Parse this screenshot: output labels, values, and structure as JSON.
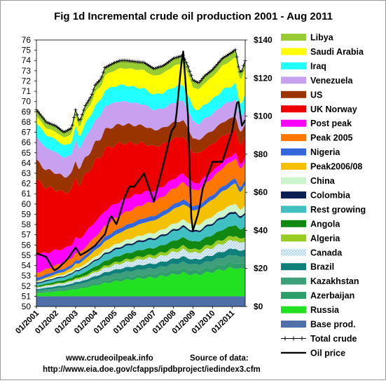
{
  "chart_data": {
    "type": "area",
    "title": "Fig 1d Incremental crude oil production 2001 - Aug 2011",
    "left_axis": {
      "ylim": [
        50,
        76
      ],
      "ticks": [
        50,
        51,
        52,
        53,
        54,
        55,
        56,
        57,
        58,
        59,
        60,
        61,
        62,
        63,
        64,
        65,
        66,
        67,
        68,
        69,
        70,
        71,
        72,
        73,
        74,
        75,
        76
      ]
    },
    "right_axis": {
      "ylim": [
        0,
        140
      ],
      "ticks": [
        0,
        20,
        40,
        60,
        80,
        100,
        120,
        140
      ],
      "tick_labels": [
        "$0",
        "$20",
        "$40",
        "$60",
        "$80",
        "$100",
        "$120",
        "$140"
      ]
    },
    "x_tick_labels": [
      "01/2001",
      "01/2002",
      "01/2003",
      "01/2004",
      "01/2005",
      "01/2006",
      "01/2007",
      "01/2008",
      "01/2009",
      "01/2010",
      "01/2011"
    ],
    "x_years": [
      2001,
      2002,
      2003,
      2004,
      2005,
      2006,
      2007,
      2008,
      2009,
      2010,
      2011
    ],
    "x_range": [
      2001.0,
      2011.67
    ],
    "grid": false,
    "legend_position": "right",
    "stack_top_knots": {
      "x": [
        2001.0,
        2001.5,
        2002.0,
        2002.4,
        2002.8,
        2003.0,
        2003.2,
        2003.5,
        2003.8,
        2004.0,
        2004.3,
        2004.5,
        2004.8,
        2005.0,
        2005.3,
        2005.6,
        2006.0,
        2006.5,
        2007.0,
        2007.5,
        2008.0,
        2008.5,
        2008.75,
        2009.0,
        2009.3,
        2009.6,
        2010.0,
        2010.5,
        2011.0,
        2011.2,
        2011.3,
        2011.45,
        2011.67
      ],
      "y": [
        69.2,
        68.0,
        67.6,
        67.0,
        67.4,
        69.2,
        68.0,
        69.6,
        70.5,
        71.6,
        72.2,
        73.3,
        73.6,
        73.8,
        74.0,
        74.0,
        73.9,
        73.8,
        73.2,
        73.5,
        74.2,
        74.5,
        73.4,
        72.1,
        71.8,
        72.5,
        73.1,
        74.2,
        74.8,
        75.1,
        73.6,
        72.7,
        74.0
      ]
    },
    "series": [
      {
        "name": "Base prod.",
        "color": "#4f6fa8",
        "start": 1.0,
        "end": 1.0
      },
      {
        "name": "Russia",
        "color": "#22e022",
        "start": 0.25,
        "end": 2.9
      },
      {
        "name": "Azerbaijan",
        "color": "#2e9e6a",
        "start": 0.05,
        "end": 0.55
      },
      {
        "name": "Kazakhstan",
        "color": "#3ea07a",
        "start": 0.2,
        "end": 0.75
      },
      {
        "name": "Brazil",
        "color": "#10807a",
        "start": 0.15,
        "end": 0.65
      },
      {
        "name": "Canada",
        "color": "#cfe5f0",
        "start": 0.15,
        "end": 0.85
      },
      {
        "name": "Algeria",
        "color": "#99cc22",
        "start": 0.05,
        "end": 0.45
      },
      {
        "name": "Angola",
        "color": "#118811",
        "start": 0.1,
        "end": 1.05
      },
      {
        "name": "Rest growing",
        "color": "#40c0c0",
        "start": 0.2,
        "end": 1.2
      },
      {
        "name": "Colombia",
        "color": "#0a2050",
        "start": 0.1,
        "end": 0.2
      },
      {
        "name": "China",
        "color": "#ccf5cc",
        "start": 0.1,
        "end": 0.75
      },
      {
        "name": "Peak2006/08",
        "color": "#f5c000",
        "start": 0.05,
        "end": 2.0
      },
      {
        "name": "Nigeria",
        "color": "#3366dd",
        "start": 0.3,
        "end": 0.5
      },
      {
        "name": "Peak 2005",
        "color": "#ff7700",
        "start": 0.45,
        "end": 2.0
      },
      {
        "name": "Post peak",
        "color": "#ff00ff",
        "start": 1.7,
        "end": 0.45
      },
      {
        "name": "UK Norway",
        "color": "#ee0000",
        "start": 6.8,
        "end": 2.0
      },
      {
        "name": "US",
        "color": "#993300",
        "start": 1.8,
        "end": 1.3
      },
      {
        "name": "Venezuela",
        "color": "#c8a0f0",
        "start": 2.2,
        "end": 1.6
      },
      {
        "name": "Iraq",
        "color": "#22ffff",
        "start": 1.3,
        "end": 1.5
      },
      {
        "name": "Saudi Arabia",
        "color": "#ffff00",
        "start": 0.6,
        "end": 2.6
      },
      {
        "name": "Libya",
        "color": "#99cc33",
        "start": 0.6,
        "end": 0.75
      }
    ],
    "line_series": [
      {
        "name": "Total crude",
        "color": "#000000",
        "marker": "+",
        "axis": "left"
      },
      {
        "name": "Oil price",
        "color": "#000000",
        "axis": "right",
        "x": [
          2001.0,
          2001.5,
          2001.9,
          2002.1,
          2002.6,
          2003.0,
          2003.25,
          2003.6,
          2004.0,
          2004.5,
          2004.8,
          2005.1,
          2005.5,
          2005.75,
          2006.0,
          2006.5,
          2006.9,
          2007.0,
          2007.5,
          2007.9,
          2008.1,
          2008.4,
          2008.5,
          2008.75,
          2008.9,
          2009.0,
          2009.3,
          2009.5,
          2010.0,
          2010.5,
          2011.0,
          2011.3,
          2011.5,
          2011.67
        ],
        "y": [
          28,
          26,
          19,
          20,
          25,
          31,
          27,
          29,
          32,
          38,
          48,
          43,
          57,
          63,
          63,
          70,
          58,
          55,
          75,
          92,
          95,
          127,
          134,
          100,
          48,
          40,
          50,
          62,
          76,
          76,
          92,
          110,
          95,
          98
        ]
      }
    ],
    "legend_entries": [
      "Libya",
      "Saudi Arabia",
      "Iraq",
      "Venezuela",
      "US",
      "UK Norway",
      "Post peak",
      "Peak 2005",
      "Nigeria",
      "Peak2006/08",
      "China",
      "Colombia",
      "Rest growing",
      "Angola",
      "Algeria",
      "Canada",
      "Brazil",
      "Kazakhstan",
      "Azerbaijan",
      "Russia",
      "Base prod.",
      "Total crude",
      "Oil price"
    ]
  },
  "footer": {
    "source_site": "www.crudeoilpeak.info",
    "source_label": "Source of data:",
    "source_url": "http://www.eia.doe.gov/cfapps/ipdbproject/iedindex3.cfm"
  }
}
